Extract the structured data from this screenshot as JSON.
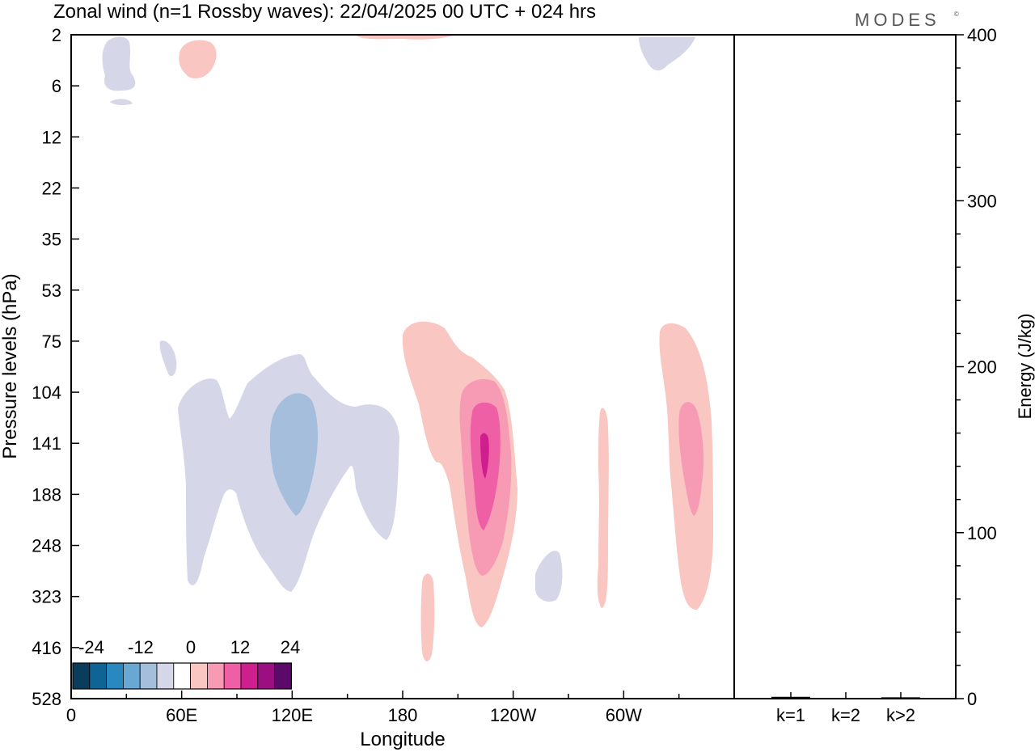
{
  "title": "Zonal wind (n=1 Rossby waves):  22/04/2025  00 UTC  + 024 hrs",
  "brand": {
    "name": "MODES",
    "mark": "©"
  },
  "colors": {
    "neg": [
      "#0a3d5c",
      "#0f6496",
      "#2a88c0",
      "#68a8d2",
      "#a4bedc",
      "#d5d7e8"
    ],
    "zero": "#ffffff",
    "pos": [
      "#f9c6c2",
      "#f79ab4",
      "#ef5fa6",
      "#cf1f8e",
      "#9c0f80",
      "#5c0a6a"
    ]
  },
  "colorbar": {
    "labels": [
      "-24",
      "-12",
      "0",
      "12",
      "24"
    ]
  },
  "chart_data": [
    {
      "type": "heatmap",
      "variable": "Zonal wind",
      "xlabel": "Longitude",
      "ylabel": "Pressure levels (hPa)",
      "x_ticks": [
        "0",
        "60E",
        "120E",
        "180",
        "120W",
        "60W"
      ],
      "x_tick_values": [
        0,
        60,
        120,
        180,
        240,
        300
      ],
      "xlim": [
        0,
        360
      ],
      "y_ticks": [
        "2",
        "6",
        "12",
        "22",
        "35",
        "53",
        "75",
        "104",
        "141",
        "188",
        "248",
        "323",
        "416",
        "528"
      ],
      "contour_levels": [
        -24,
        -20,
        -16,
        -12,
        -8,
        -4,
        0,
        4,
        8,
        12,
        16,
        20,
        24
      ],
      "features": [
        {
          "sign": "negative",
          "lon_center": 26,
          "level_top": "2",
          "level_bottom": "6",
          "max_abs": 4
        },
        {
          "sign": "positive",
          "lon_center": 68,
          "level_top": "2",
          "level_bottom": "6",
          "max_abs": 4
        },
        {
          "sign": "negative",
          "lon_center": 325,
          "level_top": "2",
          "level_bottom": "6",
          "max_abs": 4
        },
        {
          "sign": "negative",
          "lon_center": 100,
          "level_top": "75",
          "level_bottom": "323",
          "max_abs": 8
        },
        {
          "sign": "positive",
          "lon_center": 222,
          "level_top": "75",
          "level_bottom": "416",
          "max_abs": 20
        },
        {
          "sign": "positive",
          "lon_center": 334,
          "level_top": "75",
          "level_bottom": "323",
          "max_abs": 12
        },
        {
          "sign": "positive",
          "lon_center": 288,
          "level_top": "104",
          "level_bottom": "323",
          "max_abs": 4
        },
        {
          "sign": "negative",
          "lon_center": 257,
          "level_top": "248",
          "level_bottom": "323",
          "max_abs": 4
        },
        {
          "sign": "positive",
          "lon_center": 194,
          "level_top": "248",
          "level_bottom": "416",
          "max_abs": 4
        }
      ]
    },
    {
      "type": "bar",
      "ylabel": "Energy (J/kg)",
      "ylim": [
        0,
        400
      ],
      "y_ticks": [
        "0",
        "100",
        "200",
        "300",
        "400"
      ],
      "categories": [
        "k=1",
        "k=2",
        "k>2"
      ],
      "values": [
        0.8,
        0.1,
        0.5
      ]
    }
  ]
}
